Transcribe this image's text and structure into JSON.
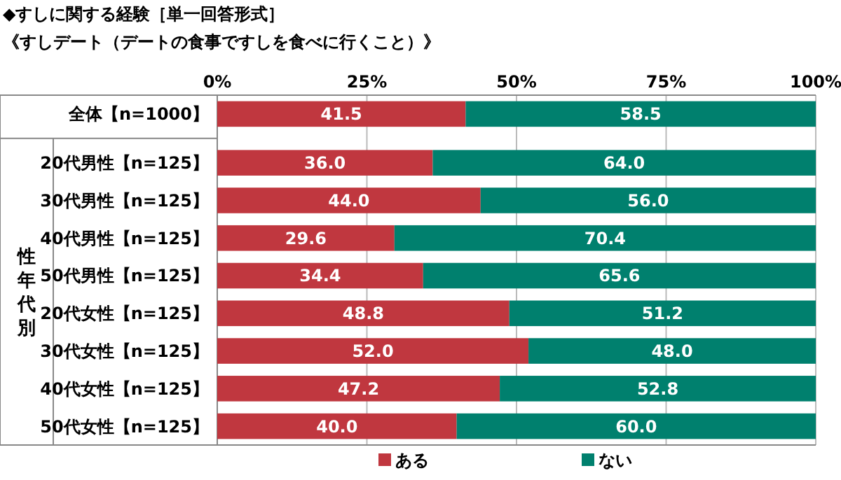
{
  "chart_data": {
    "type": "bar",
    "orientation": "horizontal",
    "stacked": true,
    "title": "◆すしに関する経験［単一回答形式］",
    "subtitle": "《すしデート（デートの食事ですしを食べに行くこと）》",
    "categories": [
      "全体【n=1000】",
      "20代男性【n=125】",
      "30代男性【n=125】",
      "40代男性【n=125】",
      "50代男性【n=125】",
      "20代女性【n=125】",
      "30代女性【n=125】",
      "40代女性【n=125】",
      "50代女性【n=125】"
    ],
    "series": [
      {
        "name": "ある",
        "color": "#c0373f",
        "values": [
          41.5,
          36.0,
          44.0,
          29.6,
          34.4,
          48.8,
          52.0,
          47.2,
          40.0
        ],
        "value_labels": [
          "41.5",
          "36.0",
          "44.0",
          "29.6",
          "34.4",
          "48.8",
          "52.0",
          "47.2",
          "40.0"
        ]
      },
      {
        "name": "ない",
        "color": "#00806e",
        "values": [
          58.5,
          64.0,
          56.0,
          70.4,
          65.6,
          51.2,
          48.0,
          52.8,
          60.0
        ],
        "value_labels": [
          "58.5",
          "64.0",
          "56.0",
          "70.4",
          "65.6",
          "51.2",
          "48.0",
          "52.8",
          "60.0"
        ]
      }
    ],
    "xlim": [
      0,
      100
    ],
    "xticks": [
      {
        "value": 0,
        "label": "0%"
      },
      {
        "value": 25,
        "label": "25%"
      },
      {
        "value": 50,
        "label": "50%"
      },
      {
        "value": 75,
        "label": "75%"
      },
      {
        "value": 100,
        "label": "100%"
      }
    ],
    "grid": "x",
    "legend": "bottom",
    "annotations": [
      "性年代別"
    ]
  }
}
